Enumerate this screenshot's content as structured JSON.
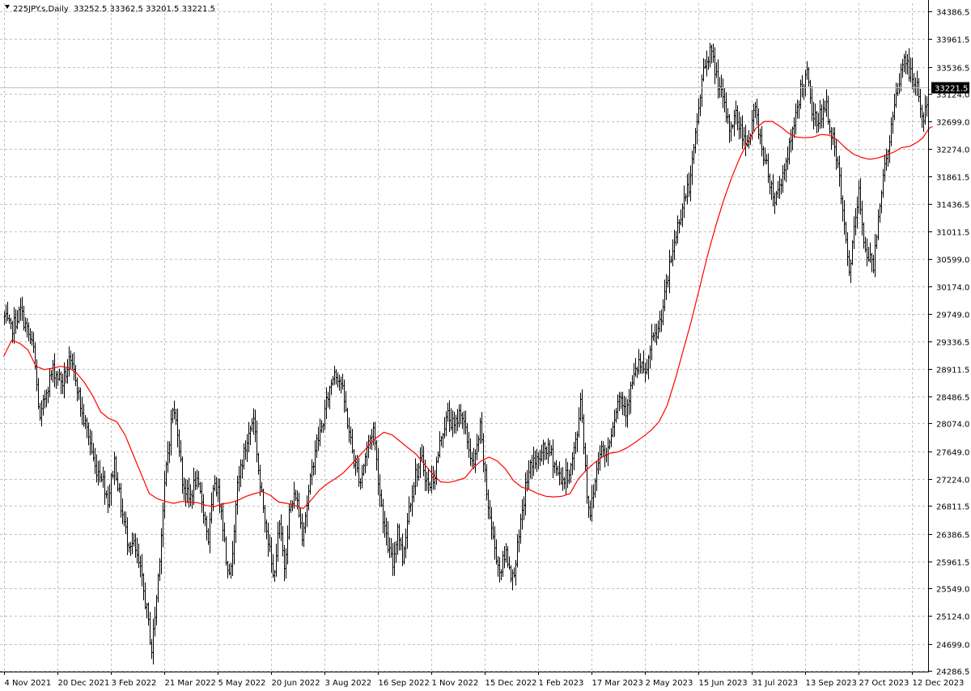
{
  "header": {
    "symbol": "225JPY.s,Daily",
    "ohlc": "33252.5 33362.5 33201.5 33221.5",
    "dropdown_icon": "triangle-down-icon"
  },
  "colors": {
    "background": "#ffffff",
    "grid": "#c0c0c0",
    "bars": "#000000",
    "moving_average": "#ff0000",
    "price_line": "#c0c0c0",
    "price_tag": "#000000"
  },
  "chart_data": {
    "type": "ohlc",
    "grid": true,
    "current_price": 33221.5,
    "current_price_label": "33221.5",
    "y_range": [
      24286.5,
      34386.5
    ],
    "y_ticks": [
      "34386.5",
      "33961.5",
      "33536.5",
      "33124.0",
      "32699.0",
      "32274.0",
      "31861.5",
      "31436.5",
      "31011.5",
      "30599.0",
      "30174.0",
      "29749.0",
      "29336.5",
      "28911.5",
      "28486.5",
      "28074.0",
      "27649.0",
      "27224.0",
      "26811.5",
      "26386.5",
      "25961.5",
      "25549.0",
      "25124.0",
      "24699.0",
      "24286.5"
    ],
    "x_ticks": [
      "4 Nov 2021",
      "20 Dec 2021",
      "3 Feb 2022",
      "21 Mar 2022",
      "5 May 2022",
      "20 Jun 2022",
      "3 Aug 2022",
      "16 Sep 2022",
      "1 Nov 2022",
      "15 Dec 2022",
      "1 Feb 2023",
      "17 Mar 2023",
      "2 May 2023",
      "15 Jun 2023",
      "31 Jul 2023",
      "13 Sep 2023",
      "27 Oct 2023",
      "12 Dec 2023"
    ],
    "x_tick_bar_index": [
      0,
      33,
      66,
      99,
      132,
      165,
      198,
      231,
      264,
      297,
      330,
      363,
      396,
      429,
      462,
      495,
      528,
      561
    ],
    "bar_count": 572,
    "path_anchors": [
      [
        0,
        29700
      ],
      [
        4,
        29500
      ],
      [
        10,
        29800
      ],
      [
        18,
        29200
      ],
      [
        22,
        28100
      ],
      [
        26,
        28600
      ],
      [
        30,
        28900
      ],
      [
        36,
        28700
      ],
      [
        40,
        29000
      ],
      [
        44,
        28800
      ],
      [
        48,
        28200
      ],
      [
        52,
        27900
      ],
      [
        56,
        27400
      ],
      [
        60,
        27300
      ],
      [
        64,
        26900
      ],
      [
        68,
        27500
      ],
      [
        72,
        26800
      ],
      [
        76,
        26300
      ],
      [
        80,
        26200
      ],
      [
        84,
        25800
      ],
      [
        88,
        25200
      ],
      [
        91,
        24600
      ],
      [
        94,
        25400
      ],
      [
        97,
        26400
      ],
      [
        100,
        27400
      ],
      [
        104,
        28300
      ],
      [
        107,
        28000
      ],
      [
        110,
        27200
      ],
      [
        114,
        26900
      ],
      [
        118,
        27200
      ],
      [
        122,
        26900
      ],
      [
        126,
        26300
      ],
      [
        130,
        27200
      ],
      [
        134,
        26800
      ],
      [
        137,
        26000
      ],
      [
        140,
        25800
      ],
      [
        143,
        26900
      ],
      [
        146,
        27400
      ],
      [
        150,
        27800
      ],
      [
        154,
        28200
      ],
      [
        158,
        27100
      ],
      [
        162,
        26500
      ],
      [
        166,
        25700
      ],
      [
        170,
        26500
      ],
      [
        173,
        25900
      ],
      [
        176,
        26700
      ],
      [
        180,
        27000
      ],
      [
        184,
        26400
      ],
      [
        188,
        27000
      ],
      [
        192,
        27700
      ],
      [
        196,
        28000
      ],
      [
        200,
        28500
      ],
      [
        204,
        28900
      ],
      [
        208,
        28700
      ],
      [
        212,
        28100
      ],
      [
        216,
        27500
      ],
      [
        220,
        27200
      ],
      [
        224,
        27700
      ],
      [
        228,
        28000
      ],
      [
        232,
        27000
      ],
      [
        236,
        26300
      ],
      [
        240,
        25900
      ],
      [
        243,
        26500
      ],
      [
        246,
        26000
      ],
      [
        250,
        26800
      ],
      [
        254,
        27300
      ],
      [
        258,
        27500
      ],
      [
        262,
        27100
      ],
      [
        266,
        27300
      ],
      [
        270,
        27900
      ],
      [
        274,
        28200
      ],
      [
        278,
        28000
      ],
      [
        282,
        28300
      ],
      [
        286,
        27800
      ],
      [
        290,
        27400
      ],
      [
        294,
        28000
      ],
      [
        298,
        27000
      ],
      [
        302,
        26300
      ],
      [
        306,
        25800
      ],
      [
        310,
        26100
      ],
      [
        314,
        25700
      ],
      [
        318,
        26300
      ],
      [
        322,
        27100
      ],
      [
        326,
        27500
      ],
      [
        330,
        27500
      ],
      [
        334,
        27700
      ],
      [
        338,
        27600
      ],
      [
        342,
        27300
      ],
      [
        346,
        27200
      ],
      [
        350,
        27400
      ],
      [
        354,
        27900
      ],
      [
        356,
        28500
      ],
      [
        358,
        27800
      ],
      [
        360,
        27000
      ],
      [
        362,
        26700
      ],
      [
        365,
        27200
      ],
      [
        368,
        27700
      ],
      [
        372,
        27600
      ],
      [
        376,
        28100
      ],
      [
        380,
        28500
      ],
      [
        384,
        28300
      ],
      [
        388,
        28700
      ],
      [
        392,
        29000
      ],
      [
        396,
        28800
      ],
      [
        400,
        29300
      ],
      [
        404,
        29500
      ],
      [
        408,
        30000
      ],
      [
        412,
        30600
      ],
      [
        416,
        31100
      ],
      [
        420,
        31500
      ],
      [
        424,
        31800
      ],
      [
        428,
        32700
      ],
      [
        432,
        33500
      ],
      [
        436,
        33800
      ],
      [
        440,
        33400
      ],
      [
        444,
        33000
      ],
      [
        448,
        32600
      ],
      [
        452,
        32800
      ],
      [
        456,
        32500
      ],
      [
        460,
        32400
      ],
      [
        464,
        32900
      ],
      [
        468,
        32300
      ],
      [
        472,
        31900
      ],
      [
        476,
        31500
      ],
      [
        480,
        31800
      ],
      [
        484,
        32200
      ],
      [
        488,
        32600
      ],
      [
        492,
        33200
      ],
      [
        496,
        33400
      ],
      [
        500,
        32700
      ],
      [
        504,
        32800
      ],
      [
        508,
        32900
      ],
      [
        512,
        32400
      ],
      [
        516,
        31800
      ],
      [
        520,
        30800
      ],
      [
        522,
        30400
      ],
      [
        525,
        31000
      ],
      [
        528,
        31600
      ],
      [
        531,
        30900
      ],
      [
        534,
        30600
      ],
      [
        537,
        30500
      ],
      [
        540,
        31300
      ],
      [
        544,
        32000
      ],
      [
        548,
        32600
      ],
      [
        552,
        33200
      ],
      [
        556,
        33700
      ],
      [
        560,
        33400
      ],
      [
        564,
        33200
      ],
      [
        568,
        32700
      ],
      [
        572,
        33300
      ],
      [
        574,
        33222
      ]
    ],
    "moving_average": {
      "period": 50,
      "values": [
        [
          0,
          29100
        ],
        [
          5,
          29350
        ],
        [
          10,
          29300
        ],
        [
          15,
          29200
        ],
        [
          20,
          28950
        ],
        [
          25,
          28900
        ],
        [
          30,
          28920
        ],
        [
          35,
          28950
        ],
        [
          40,
          28930
        ],
        [
          45,
          28850
        ],
        [
          50,
          28700
        ],
        [
          55,
          28500
        ],
        [
          60,
          28250
        ],
        [
          65,
          28150
        ],
        [
          70,
          28100
        ],
        [
          75,
          27900
        ],
        [
          80,
          27600
        ],
        [
          85,
          27300
        ],
        [
          90,
          27000
        ],
        [
          95,
          26920
        ],
        [
          100,
          26880
        ],
        [
          105,
          26850
        ],
        [
          110,
          26880
        ],
        [
          115,
          26870
        ],
        [
          120,
          26860
        ],
        [
          125,
          26820
        ],
        [
          130,
          26800
        ],
        [
          135,
          26840
        ],
        [
          140,
          26860
        ],
        [
          145,
          26900
        ],
        [
          150,
          26960
        ],
        [
          155,
          27000
        ],
        [
          160,
          27030
        ],
        [
          165,
          26970
        ],
        [
          170,
          26870
        ],
        [
          175,
          26850
        ],
        [
          180,
          26820
        ],
        [
          185,
          26770
        ],
        [
          190,
          26900
        ],
        [
          195,
          27050
        ],
        [
          200,
          27150
        ],
        [
          205,
          27230
        ],
        [
          210,
          27320
        ],
        [
          215,
          27450
        ],
        [
          220,
          27580
        ],
        [
          225,
          27720
        ],
        [
          230,
          27850
        ],
        [
          235,
          27940
        ],
        [
          240,
          27900
        ],
        [
          245,
          27800
        ],
        [
          250,
          27700
        ],
        [
          255,
          27600
        ],
        [
          260,
          27450
        ],
        [
          265,
          27300
        ],
        [
          270,
          27180
        ],
        [
          275,
          27170
        ],
        [
          280,
          27200
        ],
        [
          285,
          27240
        ],
        [
          290,
          27390
        ],
        [
          295,
          27500
        ],
        [
          300,
          27560
        ],
        [
          305,
          27500
        ],
        [
          310,
          27380
        ],
        [
          315,
          27200
        ],
        [
          320,
          27100
        ],
        [
          325,
          27060
        ],
        [
          330,
          27000
        ],
        [
          335,
          26960
        ],
        [
          340,
          26950
        ],
        [
          345,
          26960
        ],
        [
          350,
          27000
        ],
        [
          355,
          27220
        ],
        [
          360,
          27360
        ],
        [
          365,
          27470
        ],
        [
          370,
          27560
        ],
        [
          375,
          27620
        ],
        [
          380,
          27640
        ],
        [
          385,
          27700
        ],
        [
          390,
          27780
        ],
        [
          395,
          27870
        ],
        [
          400,
          27970
        ],
        [
          405,
          28100
        ],
        [
          410,
          28350
        ],
        [
          415,
          28750
        ],
        [
          420,
          29200
        ],
        [
          425,
          29650
        ],
        [
          430,
          30150
        ],
        [
          435,
          30650
        ],
        [
          440,
          31100
        ],
        [
          445,
          31500
        ],
        [
          450,
          31850
        ],
        [
          455,
          32150
        ],
        [
          460,
          32400
        ],
        [
          465,
          32600
        ],
        [
          470,
          32700
        ],
        [
          475,
          32700
        ],
        [
          480,
          32620
        ],
        [
          485,
          32520
        ],
        [
          490,
          32460
        ],
        [
          495,
          32450
        ],
        [
          500,
          32460
        ],
        [
          505,
          32500
        ],
        [
          510,
          32490
        ],
        [
          515,
          32420
        ],
        [
          520,
          32300
        ],
        [
          525,
          32200
        ],
        [
          530,
          32150
        ],
        [
          535,
          32120
        ],
        [
          540,
          32140
        ],
        [
          545,
          32180
        ],
        [
          550,
          32230
        ],
        [
          555,
          32300
        ],
        [
          560,
          32320
        ],
        [
          565,
          32390
        ],
        [
          568,
          32450
        ],
        [
          572,
          32600
        ],
        [
          574,
          32620
        ]
      ]
    }
  }
}
